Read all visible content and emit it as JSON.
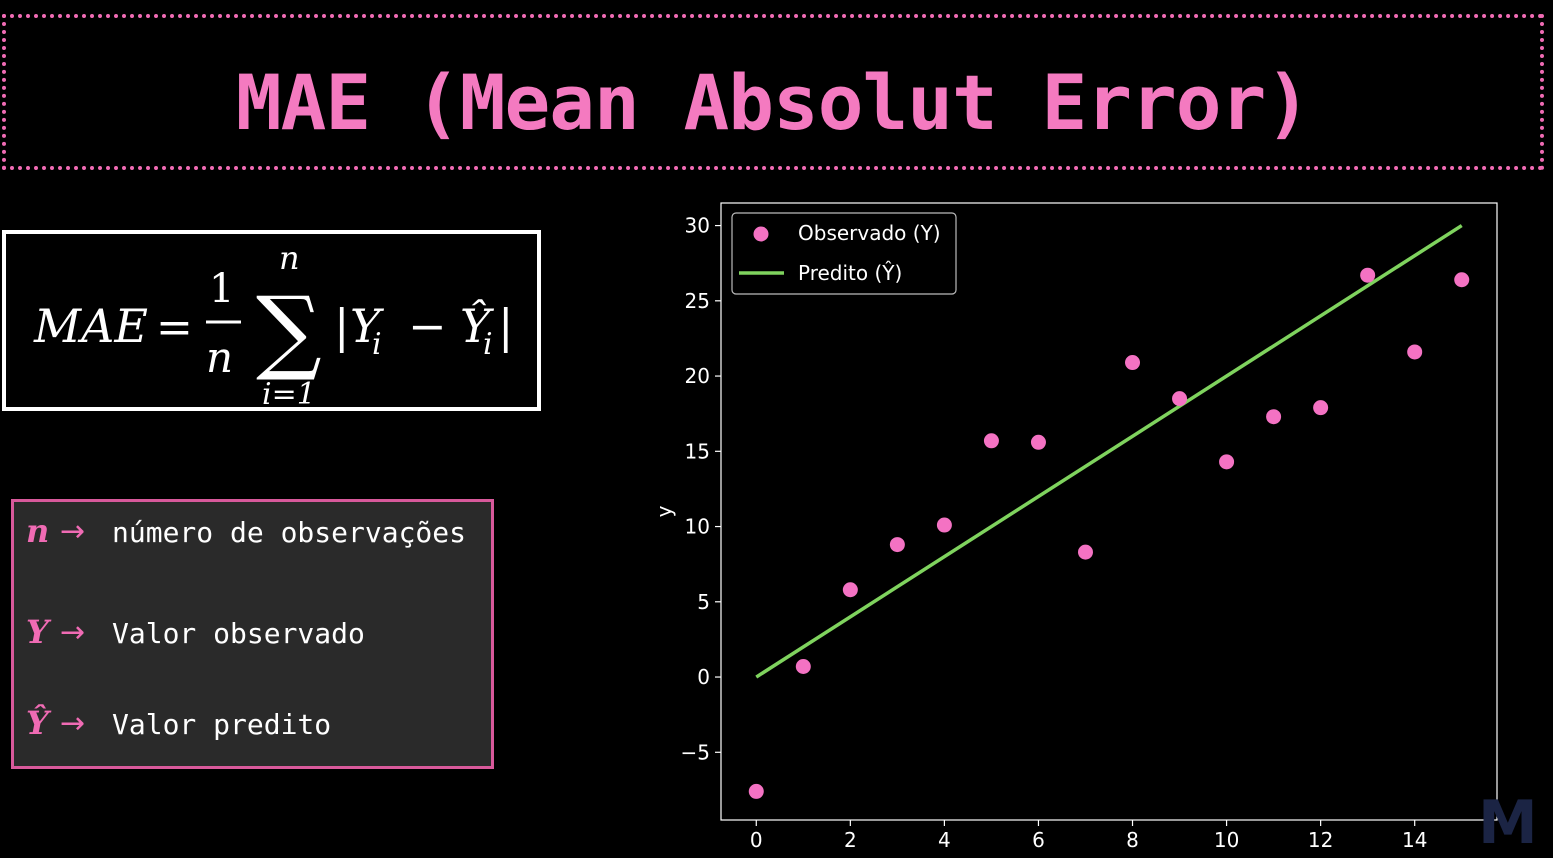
{
  "title": "MAE (Mean Absolut Error)",
  "formula": {
    "lhs": "MAE",
    "equals": "=",
    "numerator": "1",
    "denominator": "n",
    "sigma": "∑",
    "upper": "n",
    "lower": "i=1",
    "term_open": "|",
    "term_y": "Y",
    "sub_i": "i",
    "minus": "−",
    "term_yhat": "Ŷ",
    "term_close": "|"
  },
  "legend": {
    "items": [
      {
        "symbol": "n",
        "arrow": "→",
        "text": "número de observações"
      },
      {
        "symbol": "Y",
        "arrow": "→",
        "text": "Valor observado"
      },
      {
        "symbol": "Ŷ",
        "arrow": "→",
        "text": "Valor predito"
      }
    ]
  },
  "watermark": "M",
  "colors": {
    "accent": "#f06bb4",
    "points": "#f472c3",
    "line": "#7fd35e",
    "background": "#000000",
    "legend_bg": "#2a2a2a"
  },
  "chart_data": {
    "type": "scatter",
    "xlabel": "",
    "ylabel": "y",
    "xlim": [
      -0.75,
      15.75
    ],
    "ylim": [
      -9.5,
      31.5
    ],
    "xticks": [
      0,
      2,
      4,
      6,
      8,
      10,
      12,
      14
    ],
    "yticks": [
      -5,
      0,
      5,
      10,
      15,
      20,
      25,
      30
    ],
    "grid": false,
    "legend_position": "top-left",
    "series": [
      {
        "name": "Observado (Y)",
        "kind": "scatter",
        "x": [
          0,
          1,
          2,
          3,
          4,
          5,
          6,
          7,
          8,
          9,
          10,
          11,
          12,
          13,
          14,
          15
        ],
        "y": [
          -7.6,
          0.7,
          5.8,
          8.8,
          10.1,
          15.7,
          15.6,
          8.3,
          20.9,
          18.5,
          14.3,
          17.3,
          17.9,
          26.7,
          21.6,
          26.4
        ]
      },
      {
        "name": "Predito (Ŷ)",
        "kind": "line",
        "x": [
          0,
          15
        ],
        "y": [
          0,
          30
        ]
      }
    ]
  }
}
